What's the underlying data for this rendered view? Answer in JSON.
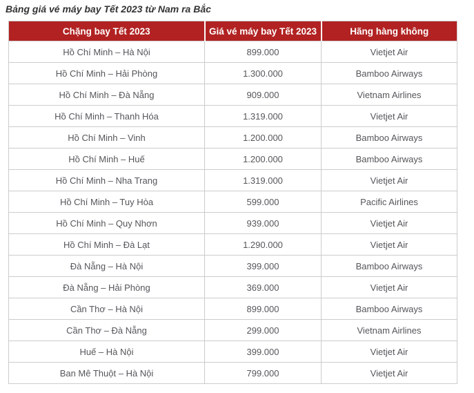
{
  "title": "Bảng giá vé máy bay Tết 2023 từ Nam ra Bắc",
  "table": {
    "headers": [
      "Chặng bay Tết 2023",
      "Giá vé máy bay Tết 2023",
      "Hãng hàng không"
    ],
    "rows": [
      [
        "Hồ Chí Minh – Hà Nội",
        "899.000",
        "Vietjet Air"
      ],
      [
        "Hồ Chí Minh – Hải Phòng",
        "1.300.000",
        "Bamboo Airways"
      ],
      [
        "Hồ Chí Minh – Đà Nẵng",
        "909.000",
        "Vietnam Airlines"
      ],
      [
        "Hồ Chí Minh – Thanh Hóa",
        "1.319.000",
        "Vietjet Air"
      ],
      [
        "Hồ Chí Minh – Vinh",
        "1.200.000",
        "Bamboo Airways"
      ],
      [
        "Hồ Chí Minh – Huế",
        "1.200.000",
        "Bamboo Airways"
      ],
      [
        "Hồ Chí Minh – Nha Trang",
        "1.319.000",
        "Vietjet Air"
      ],
      [
        "Hồ Chí Minh – Tuy Hòa",
        "599.000",
        "Pacific Airlines"
      ],
      [
        "Hồ Chí Minh – Quy Nhơn",
        "939.000",
        "Vietjet Air"
      ],
      [
        "Hồ Chí Minh – Đà Lạt",
        "1.290.000",
        "Vietjet Air"
      ],
      [
        "Đà Nẵng – Hà Nội",
        "399.000",
        "Bamboo Airways"
      ],
      [
        "Đà Nẵng – Hải Phòng",
        "369.000",
        "Vietjet Air"
      ],
      [
        "Cần Thơ – Hà Nội",
        "899.000",
        "Bamboo Airways"
      ],
      [
        "Cần Thơ – Đà Nẵng",
        "299.000",
        "Vietnam Airlines"
      ],
      [
        "Huế – Hà Nội",
        "399.000",
        "Vietjet Air"
      ],
      [
        "Ban Mê Thuột – Hà Nội",
        "799.000",
        "Vietjet Air"
      ]
    ]
  },
  "colors": {
    "header_bg": "#B22222",
    "header_text": "#FFFFFF",
    "cell_text": "#55565A",
    "border": "#CCCCCC",
    "title_text": "#333333"
  }
}
